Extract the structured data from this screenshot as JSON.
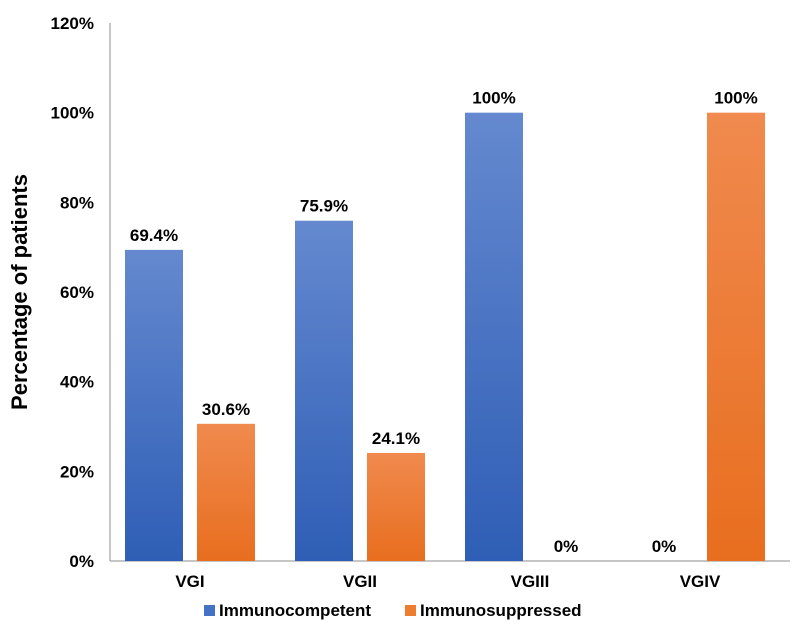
{
  "chart_data": {
    "type": "bar",
    "title": "",
    "xlabel": "",
    "ylabel": "Percentage of patients",
    "ylim": [
      0,
      120
    ],
    "yticks": [
      0,
      20,
      40,
      60,
      80,
      100,
      120
    ],
    "ytick_suffix": "%",
    "categories": [
      "VGI",
      "VGII",
      "VGIII",
      "VGIV"
    ],
    "series": [
      {
        "name": "Immunocompetent",
        "color": "#4472C4",
        "values": [
          69.4,
          75.9,
          100,
          0
        ],
        "labels": [
          "69.4%",
          "75.9%",
          "100%",
          "0%"
        ]
      },
      {
        "name": "Immunosuppressed",
        "color": "#ED7D31",
        "values": [
          30.6,
          24.1,
          0,
          100
        ],
        "labels": [
          "30.6%",
          "24.1%",
          "0%",
          "100%"
        ]
      }
    ],
    "grid": false,
    "legend": "bottom"
  }
}
